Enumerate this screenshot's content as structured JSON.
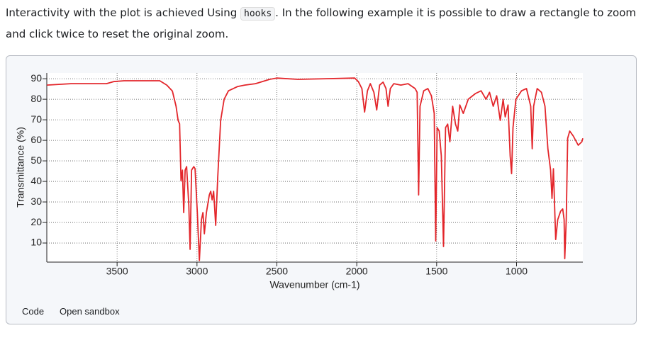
{
  "intro": {
    "before": "Interactivity with the plot is achieved Using ",
    "code": "hooks",
    "after": ". In the following example it is possible to draw a rectangle to zoom and click twice to reset the original zoom."
  },
  "chart_data": {
    "type": "line",
    "x_label": "Wavenumber (cm-1)",
    "y_label": "Transmittance (%)",
    "x": [
      3940,
      3789,
      3567,
      3522,
      3456,
      3233,
      3189,
      3154,
      3131,
      3118,
      3109,
      3100,
      3091,
      3083,
      3074,
      3065,
      3051,
      3043,
      3034,
      3020,
      3012,
      2998,
      2985,
      2972,
      2963,
      2954,
      2941,
      2923,
      2914,
      2905,
      2896,
      2883,
      2870,
      2852,
      2830,
      2803,
      2745,
      2701,
      2634,
      2545,
      2501,
      2368,
      2190,
      2013,
      1990,
      1968,
      1951,
      1933,
      1915,
      1893,
      1875,
      1857,
      1835,
      1817,
      1804,
      1790,
      1768,
      1724,
      1679,
      1635,
      1622,
      1613,
      1604,
      1581,
      1555,
      1533,
      1515,
      1506,
      1497,
      1484,
      1471,
      1457,
      1444,
      1431,
      1417,
      1400,
      1382,
      1368,
      1355,
      1333,
      1302,
      1257,
      1222,
      1191,
      1169,
      1146,
      1124,
      1102,
      1084,
      1071,
      1053,
      1040,
      1031,
      1022,
      1004,
      969,
      938,
      911,
      902,
      893,
      871,
      844,
      822,
      804,
      787,
      778,
      769,
      755,
      742,
      724,
      711,
      702,
      698,
      689,
      680,
      667,
      645,
      614,
      591,
      585
    ],
    "series": [
      {
        "name": "Transmittance",
        "color": "#e3262b",
        "values": [
          86.9,
          87.6,
          87.6,
          88.6,
          89,
          89,
          86.9,
          84,
          76.6,
          69.7,
          68,
          40.3,
          45.5,
          24.8,
          45.5,
          47.2,
          28.3,
          6.9,
          45.5,
          47.2,
          46.2,
          24.8,
          1.5,
          21.4,
          24.8,
          14.5,
          24.8,
          33.4,
          35.2,
          31,
          35.2,
          18.6,
          42.1,
          69.7,
          80,
          84.1,
          86.2,
          86.9,
          87.6,
          89.7,
          90.3,
          89.7,
          90,
          90.3,
          88.6,
          85.2,
          73.8,
          84.1,
          87.6,
          83.4,
          74.8,
          86.9,
          88.3,
          85.2,
          76.6,
          85.2,
          87.6,
          86.9,
          87.6,
          85.2,
          83.4,
          33.4,
          76.6,
          84.1,
          85.2,
          81.7,
          73.1,
          11,
          66.2,
          64.5,
          52.4,
          8.3,
          66.2,
          67.9,
          59.3,
          76.6,
          67.9,
          64.5,
          77.2,
          73.1,
          80,
          82.8,
          84.1,
          80,
          83.4,
          76.6,
          81.7,
          69.7,
          80,
          71.4,
          77.2,
          52.4,
          43.8,
          66.2,
          80,
          84.1,
          85.2,
          76.6,
          55.9,
          76.6,
          85.2,
          83.4,
          76.6,
          55.9,
          45.5,
          31.7,
          46.2,
          11.7,
          21.4,
          25.5,
          26.6,
          21.4,
          2.4,
          21.4,
          61,
          64.5,
          62.1,
          57.6,
          59.3,
          61
        ]
      }
    ],
    "xlim": [
      3940,
      585
    ],
    "ylim": [
      0.7,
      92.8
    ],
    "xticks": [
      3500,
      3000,
      2500,
      2000,
      1500,
      1000
    ],
    "yticks": [
      10,
      20,
      30,
      40,
      50,
      60,
      70,
      80,
      90
    ],
    "grid": true
  },
  "footer": {
    "code": "Code",
    "sandbox": "Open sandbox"
  }
}
